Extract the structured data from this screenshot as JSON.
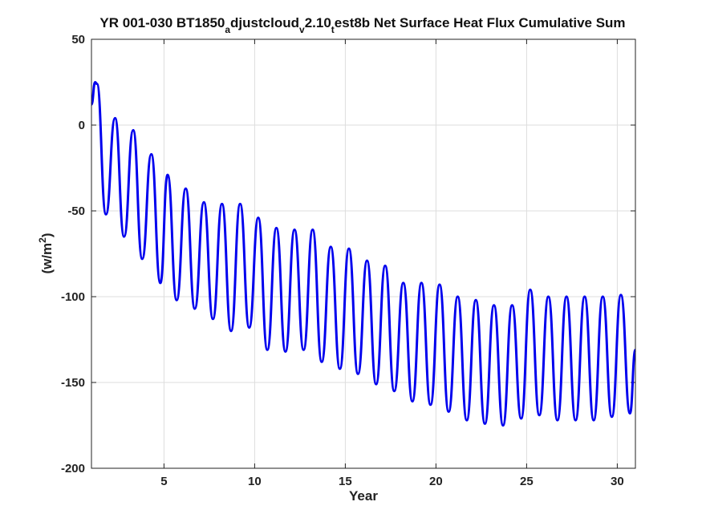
{
  "chart_data": {
    "type": "line",
    "title_parts": {
      "main": "YR 001-030 BT1850",
      "sub1": "a",
      "mid1": "djustcloud",
      "sub2": "v",
      "mid2": "2.10",
      "sub3": "t",
      "tail": "est8b Net Surface Heat Flux  Cumulative Sum"
    },
    "xlabel": "Year",
    "ylabel_base": "(w/m",
    "ylabel_sup": "2",
    "ylabel_close": ")",
    "xlim": [
      1,
      31
    ],
    "ylim": [
      -200,
      50
    ],
    "xticks": [
      5,
      10,
      15,
      20,
      25,
      30
    ],
    "yticks": [
      -200,
      -150,
      -100,
      -50,
      0,
      50
    ],
    "grid": true,
    "line_color": "#0000ee",
    "series": [
      {
        "x": [
          1.0,
          1.2,
          1.3,
          1.8,
          2.3,
          2.8,
          3.3,
          3.8,
          4.3,
          4.8,
          5.2,
          5.7,
          6.2,
          6.7,
          7.2,
          7.7,
          8.2,
          8.7,
          9.2,
          9.7,
          10.2,
          10.7,
          11.2,
          11.7,
          12.2,
          12.7,
          13.2,
          13.7,
          14.2,
          14.7,
          15.2,
          15.7,
          16.2,
          16.7,
          17.2,
          17.7,
          18.2,
          18.7,
          19.2,
          19.7,
          20.2,
          20.7,
          21.2,
          21.7,
          22.2,
          22.7,
          23.2,
          23.7,
          24.2,
          24.7,
          25.2,
          25.7,
          26.2,
          26.7,
          27.2,
          27.7,
          28.2,
          28.7,
          29.2,
          29.7,
          30.2,
          30.7,
          31.0
        ],
        "y": [
          12,
          25,
          24,
          -52,
          4,
          -65,
          -3,
          -78,
          -17,
          -92,
          -29,
          -102,
          -37,
          -107,
          -45,
          -113,
          -46,
          -120,
          -46,
          -118,
          -54,
          -131,
          -60,
          -132,
          -61,
          -131,
          -61,
          -138,
          -71,
          -142,
          -72,
          -145,
          -79,
          -151,
          -82,
          -155,
          -92,
          -161,
          -92,
          -163,
          -93,
          -167,
          -100,
          -172,
          -102,
          -174,
          -105,
          -175,
          -105,
          -171,
          -96,
          -169,
          -100,
          -172,
          -100,
          -172,
          -100,
          -172,
          -100,
          -170,
          -99,
          -168,
          -131
        ]
      }
    ]
  }
}
